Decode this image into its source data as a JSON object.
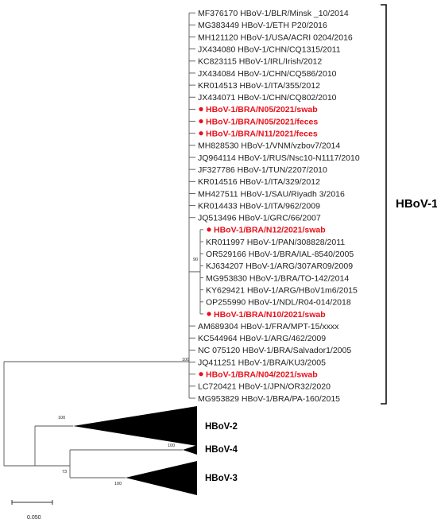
{
  "colors": {
    "branch": "#555555",
    "highlight": "#e8101a",
    "bracket": "#111111",
    "triangle": "#000000"
  },
  "leaves": [
    {
      "label": "MF376170  HBoV-1/BLR/Minsk  _10/2014",
      "highlight": false
    },
    {
      "label": "MG383449  HBoV-1/ETH  P20/2016",
      "highlight": false
    },
    {
      "label": "MH121120  HBoV-1/USA/ACRI  0204/2016",
      "highlight": false
    },
    {
      "label": "JX434080  HBoV-1/CHN/CQ1315/2011",
      "highlight": false
    },
    {
      "label": "KC823115  HBoV-1/IRL/Irish/2012",
      "highlight": false
    },
    {
      "label": "JX434084  HBoV-1/CHN/CQ586/2010",
      "highlight": false
    },
    {
      "label": "KR014513  HBoV-1/ITA/355/2012",
      "highlight": false
    },
    {
      "label": "JX434071  HBoV-1/CHN/CQ802/2010",
      "highlight": false
    },
    {
      "label": "HBoV-1/BRA/N05/2021/swab",
      "highlight": true
    },
    {
      "label": "HBoV-1/BRA/N05/2021/feces",
      "highlight": true
    },
    {
      "label": "HBoV-1/BRA/N11/2021/feces",
      "highlight": true
    },
    {
      "label": "MH828530  HBoV-1/VNM/vzbov7/2014",
      "highlight": false
    },
    {
      "label": "JQ964114  HBoV-1/RUS/Nsc10-N1117/2010",
      "highlight": false
    },
    {
      "label": "JF327786  HBoV-1/TUN/2207/2010",
      "highlight": false
    },
    {
      "label": "KR014516  HBoV-1/ITA/329/2012",
      "highlight": false
    },
    {
      "label": "MH427511  HBoV-1/SAU/Riyadh  3/2016",
      "highlight": false
    },
    {
      "label": "KR014433  HBoV-1/ITA/962/2009",
      "highlight": false
    },
    {
      "label": "JQ513496  HBoV-1/GRC/66/2007",
      "highlight": false
    },
    {
      "label": "HBoV-1/BRA/N12/2021/swab",
      "highlight": true
    },
    {
      "label": "KR011997  HBoV-1/PAN/308828/2011",
      "highlight": false
    },
    {
      "label": "OR529166  HBoV-1/BRA/IAL-8540/2005",
      "highlight": false
    },
    {
      "label": "KJ634207  HBoV-1/ARG/307AR09/2009",
      "highlight": false
    },
    {
      "label": "MG953830  HBoV-1/BRA/TO-142/2014",
      "highlight": false
    },
    {
      "label": "KY629421  HBoV-1/ARG/HBoV1m6/2015",
      "highlight": false
    },
    {
      "label": "OP255990  HBoV-1/NDL/R04-014/2018",
      "highlight": false
    },
    {
      "label": "HBoV-1/BRA/N10/2021/swab",
      "highlight": true
    },
    {
      "label": "AM689304  HBoV-1/FRA/MPT-15/xxxx",
      "highlight": false
    },
    {
      "label": "KC544964  HBoV-1/ARG/462/2009",
      "highlight": false
    },
    {
      "label": "NC 075120  HBoV-1/BRA/Salvador1/2005",
      "highlight": false
    },
    {
      "label": "JQ411251  HBoV-1/BRA/KU3/2005",
      "highlight": false
    },
    {
      "label": "HBoV-1/BRA/N04/2021/swab",
      "highlight": true
    },
    {
      "label": "LC720421  HBoV-1/JPN/OR32/2020",
      "highlight": false
    },
    {
      "label": "MG953829  HBoV-1/BRA/PA-160/2015",
      "highlight": false
    }
  ],
  "clades": {
    "hbov1": "HBoV-1",
    "hbov2": "HBoV-2",
    "hbov3": "HBoV-3",
    "hbov4": "HBoV-4"
  },
  "bootstrap": {
    "root_hbov1": "100",
    "inner": "90",
    "hbov2": "100",
    "hbov4": "100",
    "hbov3": "100",
    "hbov34": "73"
  },
  "scale_bar": {
    "label": "0.050"
  }
}
